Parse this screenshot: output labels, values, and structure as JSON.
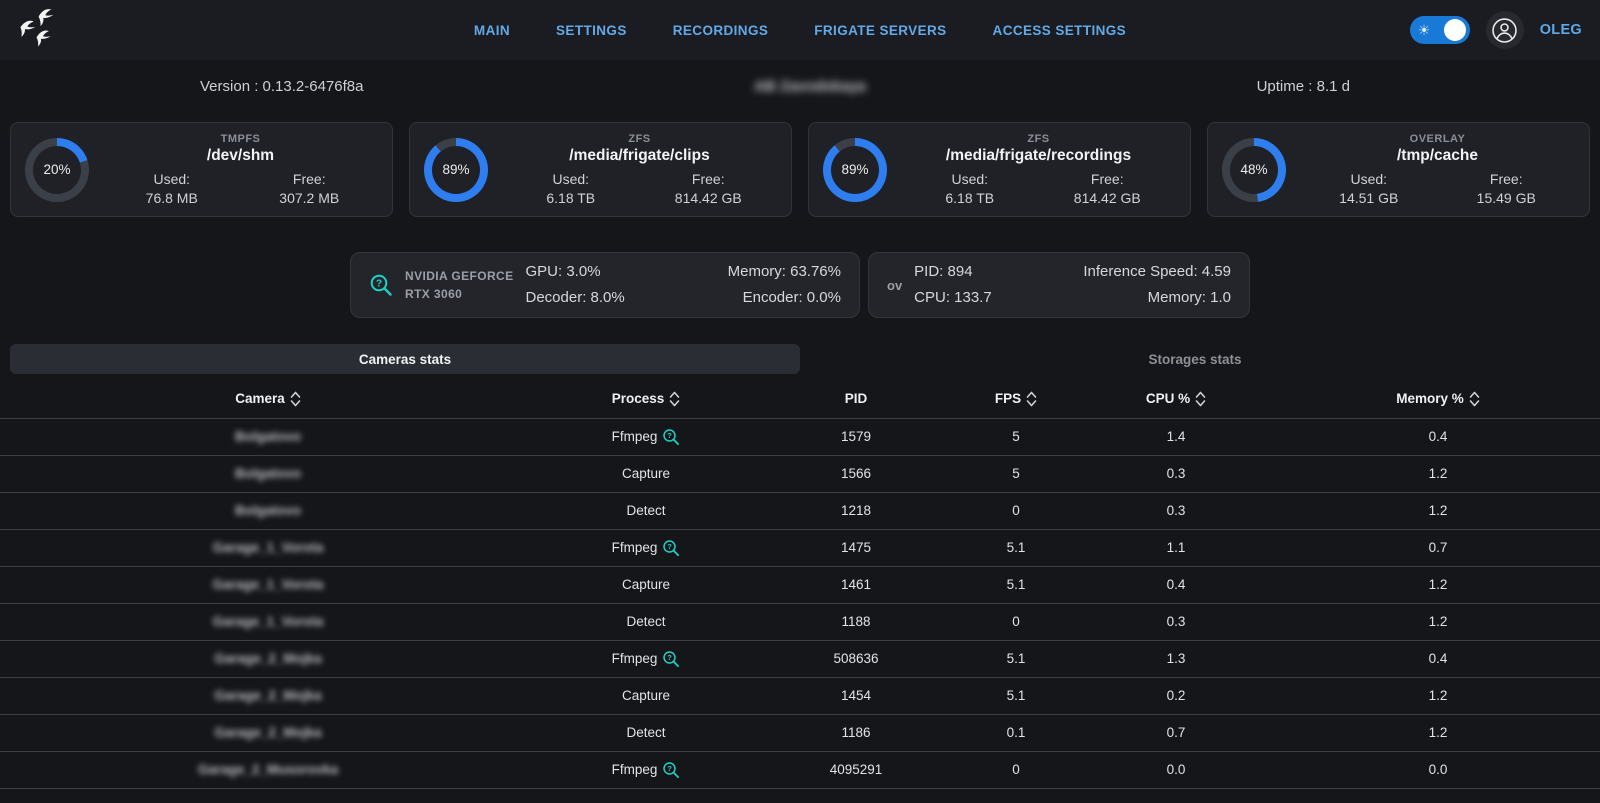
{
  "colors": {
    "accent_blue": "#2e7ef0",
    "donut_track": "#3b3f47",
    "cyan": "#1cd2c3",
    "nav_link_blue": "#62a9e8"
  },
  "navbar": {
    "logo": "frigate-birds-logo",
    "links": [
      {
        "label": "MAIN"
      },
      {
        "label": "SETTINGS"
      },
      {
        "label": "RECORDINGS"
      },
      {
        "label": "FRIGATE SERVERS"
      },
      {
        "label": "ACCESS SETTINGS"
      }
    ],
    "theme_toggle": {
      "state": "on",
      "icon": "sun"
    },
    "user_name": "OLEG"
  },
  "info_bar": {
    "version": "Version : 0.13.2-6476f8a",
    "server_name": "AB Zavodskaya",
    "server_name_redacted": true,
    "uptime": "Uptime : 8.1 d"
  },
  "labels": {
    "used": "Used:",
    "free": "Free:"
  },
  "storage_cards": [
    {
      "fs_type": "TMPFS",
      "mount": "/dev/shm",
      "percent": 20,
      "used": "76.8 MB",
      "free": "307.2 MB"
    },
    {
      "fs_type": "ZFS",
      "mount": "/media/frigate/clips",
      "percent": 89,
      "used": "6.18 TB",
      "free": "814.42 GB"
    },
    {
      "fs_type": "ZFS",
      "mount": "/media/frigate/recordings",
      "percent": 89,
      "used": "6.18 TB",
      "free": "814.42 GB"
    },
    {
      "fs_type": "OVERLAY",
      "mount": "/tmp/cache",
      "percent": 48,
      "used": "14.51 GB",
      "free": "15.49 GB"
    }
  ],
  "gpu_card": {
    "icon": "zoom-question-icon",
    "name_line1": "NVIDIA GEFORCE",
    "name_line2": "RTX 3060",
    "stats_left": {
      "0": "GPU: 3.0%",
      "1": "Decoder: 8.0%"
    },
    "stats_right": {
      "0": "Memory: 63.76%",
      "1": "Encoder: 0.0%"
    }
  },
  "detector_card": {
    "label": "ov",
    "stats_left": {
      "0": "PID: 894",
      "1": "CPU: 133.7"
    },
    "stats_right": {
      "0": "Inference Speed: 4.59",
      "1": "Memory: 1.0"
    }
  },
  "tabs": [
    {
      "label": "Cameras stats",
      "active": true
    },
    {
      "label": "Storages stats",
      "active": false
    }
  ],
  "cameras_table": {
    "columns": [
      {
        "label": "Camera",
        "sortable": true
      },
      {
        "label": "Process",
        "sortable": true
      },
      {
        "label": "PID",
        "sortable": false
      },
      {
        "label": "FPS",
        "sortable": true
      },
      {
        "label": "CPU %",
        "sortable": true
      },
      {
        "label": "Memory %",
        "sortable": true
      }
    ],
    "rows": [
      {
        "camera": "Bolgatovo",
        "camera_redacted": true,
        "process": "Ffmpeg",
        "inspect_icon": true,
        "pid": "1579",
        "fps": "5",
        "cpu": "1.4",
        "memory": "0.4"
      },
      {
        "camera": "Bolgatovo",
        "camera_redacted": true,
        "process": "Capture",
        "inspect_icon": false,
        "pid": "1566",
        "fps": "5",
        "cpu": "0.3",
        "memory": "1.2"
      },
      {
        "camera": "Bolgatovo",
        "camera_redacted": true,
        "process": "Detect",
        "inspect_icon": false,
        "pid": "1218",
        "fps": "0",
        "cpu": "0.3",
        "memory": "1.2"
      },
      {
        "camera": "Garage_1_Vorota",
        "camera_redacted": true,
        "process": "Ffmpeg",
        "inspect_icon": true,
        "pid": "1475",
        "fps": "5.1",
        "cpu": "1.1",
        "memory": "0.7"
      },
      {
        "camera": "Garage_1_Vorota",
        "camera_redacted": true,
        "process": "Capture",
        "inspect_icon": false,
        "pid": "1461",
        "fps": "5.1",
        "cpu": "0.4",
        "memory": "1.2"
      },
      {
        "camera": "Garage_1_Vorota",
        "camera_redacted": true,
        "process": "Detect",
        "inspect_icon": false,
        "pid": "1188",
        "fps": "0",
        "cpu": "0.3",
        "memory": "1.2"
      },
      {
        "camera": "Garage_2_Mojka",
        "camera_redacted": true,
        "process": "Ffmpeg",
        "inspect_icon": true,
        "pid": "508636",
        "fps": "5.1",
        "cpu": "1.3",
        "memory": "0.4"
      },
      {
        "camera": "Garage_2_Mojka",
        "camera_redacted": true,
        "process": "Capture",
        "inspect_icon": false,
        "pid": "1454",
        "fps": "5.1",
        "cpu": "0.2",
        "memory": "1.2"
      },
      {
        "camera": "Garage_2_Mojka",
        "camera_redacted": true,
        "process": "Detect",
        "inspect_icon": false,
        "pid": "1186",
        "fps": "0.1",
        "cpu": "0.7",
        "memory": "1.2"
      },
      {
        "camera": "Garage_2_Musorovka",
        "camera_redacted": true,
        "process": "Ffmpeg",
        "inspect_icon": true,
        "pid": "4095291",
        "fps": "0",
        "cpu": "0.0",
        "memory": "0.0"
      }
    ]
  }
}
